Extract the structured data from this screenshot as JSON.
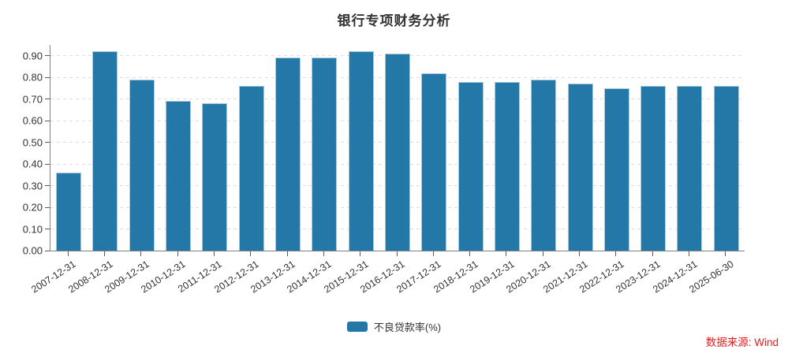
{
  "header": {
    "title": "银行专项财务分析"
  },
  "legend": {
    "items": [
      {
        "label": "不良贷款率(%)",
        "color": "#2478a8"
      }
    ]
  },
  "footer": {
    "source_text": "数据来源: Wind",
    "source_color": "#e02121"
  },
  "colors": {
    "bar_fill": "#2478a8",
    "bar_border": "#a9cbdc",
    "axis_line": "#828282",
    "tick": "#5a5a5a",
    "label": "#333333",
    "gridline": "#dcdcdc"
  },
  "chart_data": {
    "type": "bar",
    "title": "银行专项财务分析",
    "categories": [
      "2007-12-31",
      "2008-12-31",
      "2009-12-31",
      "2010-12-31",
      "2011-12-31",
      "2012-12-31",
      "2013-12-31",
      "2014-12-31",
      "2015-12-31",
      "2016-12-31",
      "2017-12-31",
      "2018-12-31",
      "2019-12-31",
      "2020-12-31",
      "2021-12-31",
      "2022-12-31",
      "2023-12-31",
      "2024-12-31",
      "2025-06-30"
    ],
    "series": [
      {
        "name": "不良贷款率(%)",
        "color": "#2478a8",
        "values": [
          0.36,
          0.92,
          0.79,
          0.69,
          0.68,
          0.76,
          0.89,
          0.89,
          0.92,
          0.91,
          0.82,
          0.78,
          0.78,
          0.79,
          0.77,
          0.75,
          0.76,
          0.76,
          0.76
        ]
      }
    ],
    "xlabel": "",
    "ylabel": "",
    "ylim": [
      0,
      0.95
    ],
    "ytick_step": 0.1,
    "ytick_labels": [
      "0.00",
      "0.10",
      "0.20",
      "0.30",
      "0.40",
      "0.50",
      "0.60",
      "0.70",
      "0.80",
      "0.90"
    ],
    "grid": "horizontal-dashed",
    "legend_position": "bottom-center",
    "x_label_rotation": -33
  }
}
